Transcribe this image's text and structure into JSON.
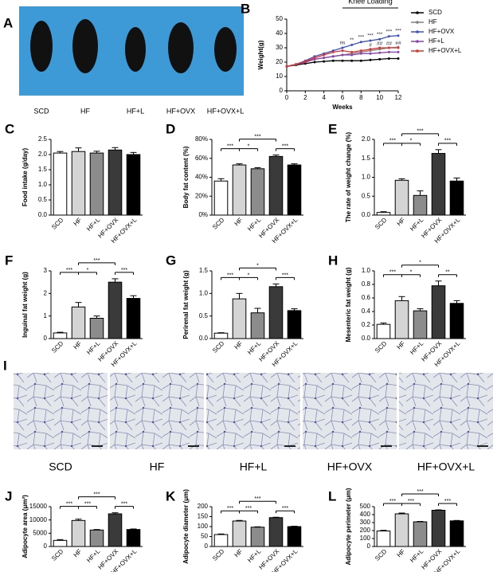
{
  "photo": {
    "panel_label": "A",
    "labels": [
      "SCD",
      "HF",
      "HF+L",
      "HF+OVX",
      "HF+OVX+L"
    ]
  },
  "histology": {
    "panel_label": "I",
    "labels": [
      "SCD",
      "HF",
      "HF+L",
      "HF+OVX",
      "HF+OVX+L"
    ]
  },
  "chart_data": [
    {
      "type": "line",
      "panel_label": "B",
      "x_label": "Weeks",
      "y_label": "Weight(g)",
      "annotation": "Knee Loading",
      "annotation_span": [
        6,
        12
      ],
      "legend": "right",
      "x": [
        0,
        1,
        2,
        3,
        4,
        5,
        6,
        7,
        8,
        9,
        10,
        11,
        12
      ],
      "xlim": [
        0,
        12
      ],
      "xticks": [
        0,
        2,
        4,
        6,
        8,
        10,
        12
      ],
      "ylim": [
        0,
        50
      ],
      "yticks": [
        0,
        10,
        20,
        30,
        40,
        50
      ],
      "series": [
        {
          "name": "SCD",
          "color": "#000000",
          "values": [
            17,
            18,
            19,
            20,
            20.5,
            21,
            21,
            21,
            21,
            21.5,
            22,
            22.5,
            22.5
          ]
        },
        {
          "name": "HF",
          "color": "#7f7f7f",
          "values": [
            17,
            18.5,
            20,
            22,
            23,
            24,
            25,
            26,
            27,
            28,
            29,
            30,
            30.5
          ]
        },
        {
          "name": "HF+OVX",
          "color": "#3b50c8",
          "values": [
            17,
            18.5,
            21,
            24,
            26,
            28,
            30,
            32,
            34,
            35,
            36,
            38,
            38.5
          ]
        },
        {
          "name": "HF+L",
          "color": "#8b3fb5",
          "values": [
            17,
            18.5,
            20,
            22,
            23,
            24,
            25,
            25,
            26,
            26,
            26.5,
            27,
            27
          ]
        },
        {
          "name": "HF+OVX+L",
          "color": "#e0302a",
          "values": [
            17,
            18.5,
            20.5,
            23,
            25,
            27,
            28,
            27,
            28,
            29,
            30,
            30,
            30
          ]
        }
      ],
      "significance": [
        {
          "x": 6,
          "label": "ns"
        },
        {
          "x": 7,
          "label": "**"
        },
        {
          "x": 8,
          "label": "***"
        },
        {
          "x": 9,
          "label": "***"
        },
        {
          "x": 10,
          "label": "***"
        },
        {
          "x": 11,
          "label": "***"
        },
        {
          "x": 12,
          "label": "***"
        }
      ],
      "significance2": [
        {
          "x": 9,
          "label": "#"
        },
        {
          "x": 10,
          "label": "##"
        },
        {
          "x": 11,
          "label": "##"
        },
        {
          "x": 12,
          "label": "##"
        }
      ]
    },
    {
      "type": "bar",
      "panel_label": "C",
      "y_label": "Food intake (g/day)",
      "categories": [
        "SCD",
        "HF",
        "HF+L",
        "HF+OVX",
        "HF+OVX+L"
      ],
      "colors": [
        "#ffffff",
        "#d4d4d4",
        "#8c8c8c",
        "#3a3a3a",
        "#000000"
      ],
      "values": [
        2.05,
        2.1,
        2.05,
        2.15,
        2.0
      ],
      "errors": [
        0.05,
        0.12,
        0.06,
        0.08,
        0.07
      ],
      "ylim": [
        0,
        2.5
      ],
      "yticks": [
        {
          "value": 0,
          "label": "0.0"
        },
        {
          "value": 0.5,
          "label": "0.5"
        },
        {
          "value": 1,
          "label": "1.0"
        },
        {
          "value": 1.5,
          "label": "1.5"
        },
        {
          "value": 2,
          "label": "2.0"
        },
        {
          "value": 2.5,
          "label": "2.5"
        }
      ],
      "brackets": []
    },
    {
      "type": "bar",
      "panel_label": "D",
      "y_label": "Body fat content (%)",
      "categories": [
        "SCD",
        "HF",
        "HF+L",
        "HF+OVX",
        "HF+OVX+L"
      ],
      "colors": [
        "#ffffff",
        "#d4d4d4",
        "#8c8c8c",
        "#3a3a3a",
        "#000000"
      ],
      "values": [
        36,
        53,
        49,
        62,
        53
      ],
      "errors": [
        2.5,
        1.2,
        1.2,
        1.5,
        1.2
      ],
      "ylim": [
        0,
        80
      ],
      "yticks": [
        {
          "value": 0,
          "label": "0%"
        },
        {
          "value": 20,
          "label": "20%"
        },
        {
          "value": 40,
          "label": "40%"
        },
        {
          "value": 60,
          "label": "60%"
        },
        {
          "value": 80,
          "label": "80%"
        }
      ],
      "brackets": [
        {
          "from": "SCD",
          "to": "HF",
          "label": "***"
        },
        {
          "from": "HF",
          "to": "HF+L",
          "label": "*"
        },
        {
          "from": "HF",
          "to": "HF+OVX",
          "label": "***"
        },
        {
          "from": "HF+OVX",
          "to": "HF+OVX+L",
          "label": "***"
        }
      ]
    },
    {
      "type": "bar",
      "panel_label": "E",
      "y_label": "The rate of weight change (%)",
      "categories": [
        "SCD",
        "HF",
        "HF+L",
        "HF+OVX",
        "HF+OVX+L"
      ],
      "colors": [
        "#ffffff",
        "#d4d4d4",
        "#8c8c8c",
        "#3a3a3a",
        "#000000"
      ],
      "values": [
        0.07,
        0.92,
        0.52,
        1.63,
        0.9
      ],
      "errors": [
        0.02,
        0.04,
        0.12,
        0.1,
        0.08
      ],
      "ylim": [
        0,
        2
      ],
      "yticks": [
        {
          "value": 0,
          "label": "0.0"
        },
        {
          "value": 0.5,
          "label": "0.5"
        },
        {
          "value": 1,
          "label": "1.0"
        },
        {
          "value": 1.5,
          "label": "1.5"
        },
        {
          "value": 2,
          "label": "2.0"
        }
      ],
      "brackets": [
        {
          "from": "SCD",
          "to": "HF",
          "label": "***"
        },
        {
          "from": "HF",
          "to": "HF+L",
          "label": "*"
        },
        {
          "from": "HF",
          "to": "HF+OVX",
          "label": "***"
        },
        {
          "from": "HF+OVX",
          "to": "HF+OVX+L",
          "label": "***"
        }
      ]
    },
    {
      "type": "bar",
      "panel_label": "F",
      "y_label": "Inguinal fat weight (g)",
      "categories": [
        "SCD",
        "HF",
        "HF+L",
        "HF+OVX",
        "HF+OVX+L"
      ],
      "colors": [
        "#ffffff",
        "#d4d4d4",
        "#8c8c8c",
        "#3a3a3a",
        "#000000"
      ],
      "values": [
        0.25,
        1.4,
        0.9,
        2.5,
        1.78
      ],
      "errors": [
        0.03,
        0.2,
        0.1,
        0.15,
        0.12
      ],
      "ylim": [
        0,
        3
      ],
      "yticks": [
        0,
        1,
        2,
        3
      ],
      "brackets": [
        {
          "from": "SCD",
          "to": "HF",
          "label": "***"
        },
        {
          "from": "HF",
          "to": "HF+L",
          "label": "*"
        },
        {
          "from": "HF",
          "to": "HF+OVX",
          "label": "***"
        },
        {
          "from": "HF+OVX",
          "to": "HF+OVX+L",
          "label": "***"
        }
      ]
    },
    {
      "type": "bar",
      "panel_label": "G",
      "y_label": "Perirenal fat weight (g)",
      "categories": [
        "SCD",
        "HF",
        "HF+L",
        "HF+OVX",
        "HF+OVX+L"
      ],
      "colors": [
        "#ffffff",
        "#d4d4d4",
        "#8c8c8c",
        "#3a3a3a",
        "#000000"
      ],
      "values": [
        0.12,
        0.88,
        0.57,
        1.15,
        0.62
      ],
      "errors": [
        0.01,
        0.12,
        0.1,
        0.06,
        0.04
      ],
      "ylim": [
        0,
        1.5
      ],
      "yticks": [
        {
          "value": 0,
          "label": "0.0"
        },
        {
          "value": 0.5,
          "label": "0.5"
        },
        {
          "value": 1,
          "label": "1.0"
        },
        {
          "value": 1.5,
          "label": "1.5"
        }
      ],
      "brackets": [
        {
          "from": "SCD",
          "to": "HF",
          "label": "***"
        },
        {
          "from": "HF",
          "to": "HF+L",
          "label": "*"
        },
        {
          "from": "HF",
          "to": "HF+OVX",
          "label": "*"
        },
        {
          "from": "HF+OVX",
          "to": "HF+OVX+L",
          "label": "***"
        }
      ]
    },
    {
      "type": "bar",
      "panel_label": "H",
      "y_label": "Mesenteric fat weight (g)",
      "categories": [
        "SCD",
        "HF",
        "HF+L",
        "HF+OVX",
        "HF+OVX+L"
      ],
      "colors": [
        "#ffffff",
        "#d4d4d4",
        "#8c8c8c",
        "#3a3a3a",
        "#000000"
      ],
      "values": [
        0.21,
        0.56,
        0.41,
        0.78,
        0.52
      ],
      "errors": [
        0.02,
        0.06,
        0.03,
        0.07,
        0.04
      ],
      "ylim": [
        0,
        1
      ],
      "yticks": [
        {
          "value": 0,
          "label": "0.0"
        },
        {
          "value": 0.2,
          "label": "0.2"
        },
        {
          "value": 0.4,
          "label": "0.4"
        },
        {
          "value": 0.6,
          "label": "0.6"
        },
        {
          "value": 0.8,
          "label": "0.8"
        },
        {
          "value": 1,
          "label": "1.0"
        }
      ],
      "brackets": [
        {
          "from": "SCD",
          "to": "HF",
          "label": "***"
        },
        {
          "from": "HF",
          "to": "HF+L",
          "label": "*"
        },
        {
          "from": "HF",
          "to": "HF+OVX",
          "label": "*"
        },
        {
          "from": "HF+OVX",
          "to": "HF+OVX+L",
          "label": "**"
        }
      ]
    },
    {
      "type": "bar",
      "panel_label": "J",
      "y_label": "Adipocyte area (μm²)",
      "categories": [
        "SCD",
        "HF",
        "HF+L",
        "HF+OVX",
        "HF+OVX+L"
      ],
      "colors": [
        "#ffffff",
        "#d4d4d4",
        "#8c8c8c",
        "#3a3a3a",
        "#000000"
      ],
      "values": [
        2300,
        9800,
        6200,
        12300,
        6400
      ],
      "errors": [
        300,
        500,
        200,
        400,
        200
      ],
      "ylim": [
        0,
        15000
      ],
      "yticks": [
        0,
        5000,
        10000,
        15000
      ],
      "brackets": [
        {
          "from": "SCD",
          "to": "HF",
          "label": "***"
        },
        {
          "from": "HF",
          "to": "HF+L",
          "label": "***"
        },
        {
          "from": "HF",
          "to": "HF+OVX",
          "label": "***"
        },
        {
          "from": "HF+OVX",
          "to": "HF+OVX+L",
          "label": "***"
        }
      ]
    },
    {
      "type": "bar",
      "panel_label": "K",
      "y_label": "Adipocyte diameter (μm)",
      "categories": [
        "SCD",
        "HF",
        "HF+L",
        "HF+OVX",
        "HF+OVX+L"
      ],
      "colors": [
        "#ffffff",
        "#d4d4d4",
        "#8c8c8c",
        "#3a3a3a",
        "#000000"
      ],
      "values": [
        60,
        128,
        97,
        145,
        100
      ],
      "errors": [
        3,
        3,
        2,
        2,
        2
      ],
      "ylim": [
        0,
        200
      ],
      "yticks": [
        0,
        50,
        100,
        150,
        200
      ],
      "brackets": [
        {
          "from": "SCD",
          "to": "HF",
          "label": "***"
        },
        {
          "from": "HF",
          "to": "HF+L",
          "label": "***"
        },
        {
          "from": "HF",
          "to": "HF+OVX",
          "label": "***"
        },
        {
          "from": "HF+OVX",
          "to": "HF+OVX+L",
          "label": "***"
        }
      ]
    },
    {
      "type": "bar",
      "panel_label": "L",
      "y_label": "Adipocyte perimeter (μm)",
      "categories": [
        "SCD",
        "HF",
        "HF+L",
        "HF+OVX",
        "HF+OVX+L"
      ],
      "colors": [
        "#ffffff",
        "#d4d4d4",
        "#8c8c8c",
        "#3a3a3a",
        "#000000"
      ],
      "values": [
        195,
        410,
        310,
        455,
        322
      ],
      "errors": [
        8,
        10,
        5,
        5,
        5
      ],
      "ylim": [
        0,
        500
      ],
      "yticks": [
        0,
        100,
        200,
        300,
        400,
        500
      ],
      "brackets": [
        {
          "from": "SCD",
          "to": "HF",
          "label": "***"
        },
        {
          "from": "HF",
          "to": "HF+L",
          "label": "***"
        },
        {
          "from": "HF",
          "to": "HF+OVX",
          "label": "***"
        },
        {
          "from": "HF+OVX",
          "to": "HF+OVX+L",
          "label": "***"
        }
      ]
    }
  ]
}
